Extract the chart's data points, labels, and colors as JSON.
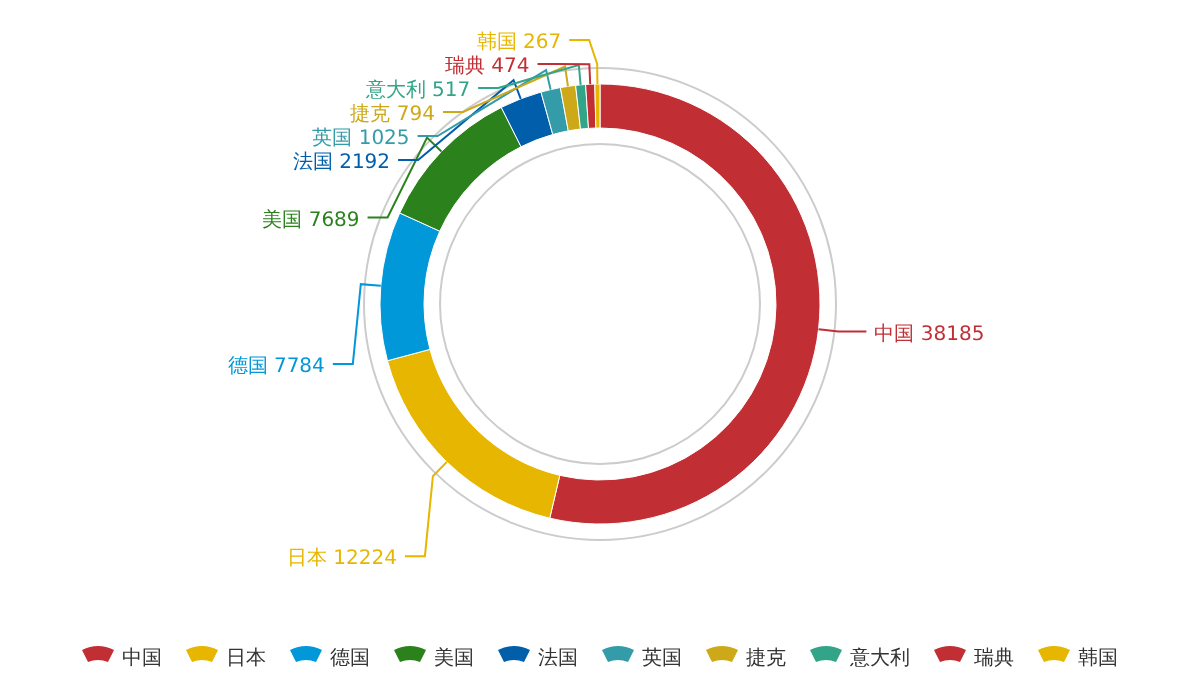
{
  "chart_data": {
    "type": "donut",
    "categories": [
      "中国",
      "日本",
      "德国",
      "美国",
      "法国",
      "英国",
      "捷克",
      "意大利",
      "瑞典",
      "韩国"
    ],
    "values": [
      38185,
      12224,
      7784,
      7689,
      2192,
      1025,
      794,
      517,
      474,
      267
    ],
    "colors": [
      "#c12e34",
      "#e6b600",
      "#0098d9",
      "#2b821d",
      "#005eaa",
      "#339ca8",
      "#cda819",
      "#32a487",
      "#c12e34",
      "#e6b600"
    ],
    "data_labels": true,
    "legend": "bottom"
  }
}
